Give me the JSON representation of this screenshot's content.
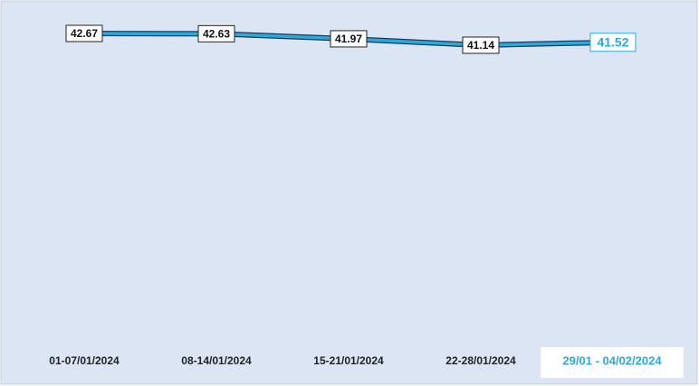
{
  "chart_data": {
    "type": "line",
    "categories": [
      "01-07/01/2024",
      "08-14/01/2024",
      "15-21/01/2024",
      "22-28/01/2024",
      "29/01 - 04/02/2024"
    ],
    "values": [
      42.67,
      42.63,
      41.97,
      41.14,
      41.52
    ],
    "color": "#29a9e0"
  }
}
